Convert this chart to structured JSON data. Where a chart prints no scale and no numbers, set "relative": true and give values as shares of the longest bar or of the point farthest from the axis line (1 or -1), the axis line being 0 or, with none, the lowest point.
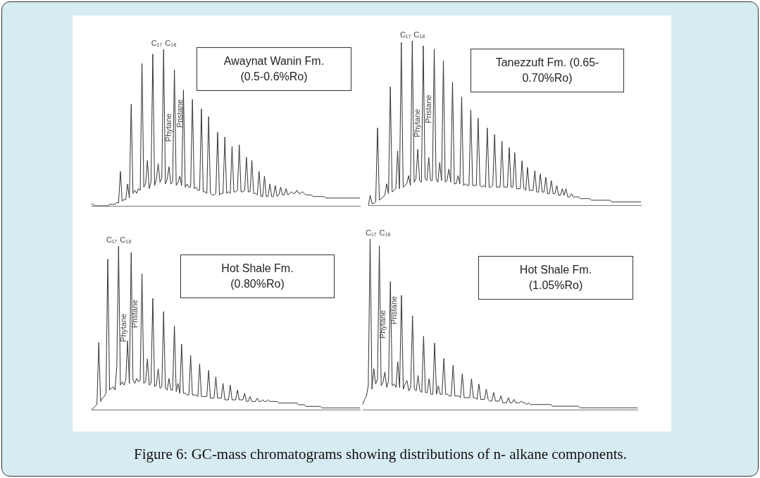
{
  "chart_data": [
    {
      "type": "line",
      "title": "Awaynat Wanin Fm. (0.5-0.6%Ro)",
      "relative": true,
      "annotations": [
        "C₁₇",
        "C₁₈",
        "Phytane",
        "Pristane"
      ],
      "categories": [
        null,
        null,
        null,
        null,
        null,
        null,
        null,
        null,
        null,
        null,
        null,
        null,
        null,
        null,
        null,
        null,
        null,
        null,
        null,
        null,
        null,
        null,
        null,
        null,
        null,
        null,
        null,
        null,
        null,
        null,
        null,
        null,
        null,
        null,
        null,
        null,
        null,
        null,
        null,
        null,
        null,
        null,
        null,
        null,
        null,
        null,
        null,
        null,
        null,
        null,
        null,
        null,
        null,
        null,
        null,
        null,
        null,
        null,
        null,
        null,
        null,
        null,
        null,
        null,
        null,
        null,
        null,
        null,
        null,
        null,
        null,
        null,
        null,
        null,
        null,
        null,
        null,
        null,
        null,
        null,
        null,
        null,
        null,
        null,
        null,
        null,
        null,
        null,
        null,
        null,
        null,
        null,
        null,
        null,
        null,
        null,
        null,
        null,
        null,
        null,
        null,
        null,
        null,
        null,
        null,
        null,
        null,
        null,
        null,
        null,
        null,
        null,
        null,
        null,
        null,
        null,
        null,
        null,
        null,
        null,
        null,
        null,
        null,
        null,
        null,
        null,
        null,
        null,
        null,
        null,
        null,
        null,
        null,
        null,
        null,
        null,
        null,
        null,
        null,
        null,
        null,
        null,
        null,
        null,
        null,
        null,
        null,
        null,
        null,
        null
      ],
      "series": [
        {
          "color": "#333333",
          "values": [
            0.01,
            0.01,
            0,
            0,
            0,
            0,
            0,
            0,
            0,
            0,
            0.01,
            0.01,
            0.01,
            0.01,
            0.02,
            0.02,
            0.22,
            0.03,
            0.04,
            0.04,
            0.14,
            0.05,
            0.65,
            0.08,
            0.1,
            0.08,
            0.11,
            0.1,
            0.91,
            0.12,
            0.14,
            0.29,
            0.11,
            0.15,
            0.97,
            0.13,
            0.17,
            0.27,
            0.15,
            0.18,
            1,
            0.14,
            0.17,
            0.25,
            0.14,
            0.15,
            0.87,
            0.13,
            0.15,
            0.19,
            0.13,
            0.74,
            0.12,
            0.14,
            0.12,
            0.12,
            0.68,
            0.11,
            0.12,
            0.1,
            0.1,
            0.62,
            0.09,
            0.09,
            0.08,
            0.57,
            0.08,
            0.07,
            0.07,
            0.08,
            0.47,
            0.07,
            0.08,
            0.08,
            0.44,
            0.08,
            0.09,
            0.08,
            0.38,
            0.09,
            0.09,
            0.1,
            0.39,
            0.09,
            0.09,
            0.1,
            0.31,
            0.09,
            0.09,
            0.29,
            0.08,
            0.08,
            0.07,
            0.22,
            0.06,
            0.06,
            0.19,
            0.06,
            0.06,
            0.14,
            0.06,
            0.06,
            0.13,
            0.06,
            0.07,
            0.12,
            0.07,
            0.07,
            0.11,
            0.07,
            0.08,
            0.09,
            0.08,
            0.08,
            0.1,
            0.08,
            0.08,
            0.09,
            0.08,
            0.07,
            0.07,
            0.07,
            0.07,
            0.06,
            0.06,
            0.06,
            0.06,
            0.06,
            0.06,
            0.06,
            0.05,
            0.05,
            0.05,
            0.05,
            0.05,
            0.05,
            0.05,
            0.05,
            0.05,
            0.05,
            0.05,
            0.05,
            0.05,
            0.05,
            0.05,
            0.05,
            0.05,
            0.05,
            0.05,
            0.05
          ]
        }
      ]
    },
    {
      "type": "line",
      "title": "Tanezzuft Fm. (0.65-0.70%Ro)",
      "relative": true,
      "annotations": [
        "C₁₇",
        "C₁₈",
        "Phytane",
        "Pristane"
      ],
      "categories": [
        null,
        null,
        null,
        null,
        null,
        null,
        null,
        null,
        null,
        null,
        null,
        null,
        null,
        null,
        null,
        null,
        null,
        null,
        null,
        null,
        null,
        null,
        null,
        null,
        null,
        null,
        null,
        null,
        null,
        null,
        null,
        null,
        null,
        null,
        null,
        null,
        null,
        null,
        null,
        null,
        null,
        null,
        null,
        null,
        null,
        null,
        null,
        null,
        null,
        null,
        null,
        null,
        null,
        null,
        null,
        null,
        null,
        null,
        null,
        null,
        null,
        null,
        null,
        null,
        null,
        null,
        null,
        null,
        null,
        null,
        null,
        null,
        null,
        null,
        null,
        null,
        null,
        null,
        null,
        null,
        null,
        null,
        null,
        null,
        null,
        null,
        null,
        null,
        null,
        null,
        null,
        null,
        null,
        null,
        null,
        null,
        null,
        null,
        null,
        null,
        null,
        null,
        null,
        null,
        null,
        null,
        null,
        null,
        null,
        null,
        null,
        null,
        null,
        null,
        null,
        null,
        null,
        null,
        null,
        null,
        null,
        null,
        null,
        null,
        null,
        null,
        null,
        null,
        null,
        null,
        null,
        null,
        null,
        null,
        null,
        null,
        null,
        null,
        null,
        null,
        null,
        null,
        null,
        null,
        null,
        null,
        null,
        null,
        null,
        null
      ],
      "series": [
        {
          "color": "#333333",
          "values": [
            0,
            0.06,
            0.01,
            0.01,
            0.02,
            0.47,
            0.03,
            0.04,
            0.05,
            0.06,
            0.13,
            0.07,
            0.72,
            0.08,
            0.09,
            0.1,
            0.33,
            0.1,
            0.99,
            0.11,
            0.12,
            0.13,
            0.18,
            0.12,
            1,
            0.14,
            0.16,
            0.34,
            0.15,
            0.14,
            0.97,
            0.16,
            0.15,
            0.29,
            0.15,
            0.15,
            0.95,
            0.16,
            0.14,
            0.26,
            0.15,
            0.88,
            0.14,
            0.15,
            0.22,
            0.14,
            0.75,
            0.13,
            0.13,
            0.18,
            0.13,
            0.66,
            0.12,
            0.13,
            0.12,
            0.12,
            0.58,
            0.12,
            0.12,
            0.12,
            0.53,
            0.12,
            0.11,
            0.12,
            0.11,
            0.47,
            0.11,
            0.11,
            0.12,
            0.43,
            0.11,
            0.11,
            0.11,
            0.39,
            0.11,
            0.11,
            0.11,
            0.35,
            0.11,
            0.11,
            0.32,
            0.1,
            0.1,
            0.1,
            0.27,
            0.1,
            0.09,
            0.23,
            0.09,
            0.09,
            0.09,
            0.21,
            0.08,
            0.08,
            0.19,
            0.08,
            0.08,
            0.17,
            0.07,
            0.07,
            0.15,
            0.07,
            0.07,
            0.12,
            0.06,
            0.06,
            0.1,
            0.06,
            0.1,
            0.05,
            0.05,
            0.07,
            0.05,
            0.05,
            0.05,
            0.05,
            0.04,
            0.04,
            0.04,
            0.04,
            0.04,
            0.04,
            0.03,
            0.03,
            0.03,
            0.03,
            0.03,
            0.03,
            0.03,
            0.03,
            0.03,
            0.03,
            0.03,
            0.02,
            0.02,
            0.02,
            0.02,
            0.02,
            0.02,
            0.02,
            0.02,
            0.02,
            0.02,
            0.02,
            0.02,
            0.02,
            0.02,
            0.02,
            0.02,
            0.02
          ]
        }
      ]
    },
    {
      "type": "line",
      "title": "Hot Shale Fm. (0.80%Ro)",
      "relative": true,
      "annotations": [
        "C₁₇",
        "C₁₈",
        "Phytane",
        "Pristane"
      ],
      "categories": [
        null,
        null,
        null,
        null,
        null,
        null,
        null,
        null,
        null,
        null,
        null,
        null,
        null,
        null,
        null,
        null,
        null,
        null,
        null,
        null,
        null,
        null,
        null,
        null,
        null,
        null,
        null,
        null,
        null,
        null,
        null,
        null,
        null,
        null,
        null,
        null,
        null,
        null,
        null,
        null,
        null,
        null,
        null,
        null,
        null,
        null,
        null,
        null,
        null,
        null,
        null,
        null,
        null,
        null,
        null,
        null,
        null,
        null,
        null,
        null,
        null,
        null,
        null,
        null,
        null,
        null,
        null,
        null,
        null,
        null,
        null,
        null,
        null,
        null,
        null,
        null,
        null,
        null,
        null,
        null,
        null,
        null,
        null,
        null,
        null,
        null,
        null,
        null,
        null,
        null,
        null,
        null,
        null,
        null,
        null,
        null,
        null,
        null,
        null,
        null,
        null,
        null,
        null,
        null,
        null,
        null,
        null,
        null,
        null,
        null,
        null,
        null,
        null,
        null,
        null,
        null,
        null,
        null,
        null,
        null,
        null,
        null,
        null,
        null,
        null,
        null,
        null,
        null,
        null,
        null,
        null,
        null,
        null,
        null,
        null,
        null,
        null,
        null,
        null,
        null,
        null,
        null,
        null,
        null,
        null,
        null,
        null,
        null,
        null,
        null
      ],
      "series": [
        {
          "color": "#333333",
          "values": [
            0,
            0.01,
            0.02,
            0.03,
            0.41,
            0.05,
            0.07,
            0.08,
            0.1,
            0.92,
            0.12,
            0.13,
            0.14,
            0.12,
            0.26,
            1,
            0.15,
            0.17,
            0.15,
            0.18,
            0.42,
            0.16,
            0.96,
            0.18,
            0.16,
            0.19,
            0.17,
            0.18,
            0.83,
            0.16,
            0.17,
            0.31,
            0.15,
            0.16,
            0.68,
            0.14,
            0.15,
            0.25,
            0.13,
            0.14,
            0.6,
            0.13,
            0.12,
            0.19,
            0.12,
            0.12,
            0.51,
            0.11,
            0.16,
            0.1,
            0.4,
            0.1,
            0.1,
            0.09,
            0.09,
            0.33,
            0.09,
            0.09,
            0.09,
            0.08,
            0.28,
            0.08,
            0.08,
            0.08,
            0.08,
            0.24,
            0.07,
            0.07,
            0.07,
            0.2,
            0.07,
            0.07,
            0.07,
            0.16,
            0.06,
            0.06,
            0.06,
            0.15,
            0.06,
            0.06,
            0.06,
            0.12,
            0.06,
            0.06,
            0.06,
            0.1,
            0.05,
            0.05,
            0.08,
            0.05,
            0.05,
            0.05,
            0.07,
            0.05,
            0.05,
            0.06,
            0.05,
            0.05,
            0.06,
            0.05,
            0.05,
            0.05,
            0.05,
            0.05,
            0.04,
            0.04,
            0.04,
            0.04,
            0.04,
            0.04,
            0.04,
            0.04,
            0.04,
            0.04,
            0.04,
            0.03,
            0.03,
            0.03,
            0.03,
            0.02,
            0.02,
            0.02,
            0.02,
            0.02,
            0.02,
            0.02,
            0.02,
            0.02,
            0.01,
            0.01,
            0.01,
            0.01,
            0.01,
            0.01,
            0.01,
            0.01,
            0.01,
            0.01,
            0.01,
            0.01,
            0.01,
            0.01,
            0.01,
            0.01,
            0.01,
            0.01,
            0.01,
            0.01,
            0.01,
            0.01
          ]
        }
      ]
    },
    {
      "type": "line",
      "title": "Hot Shale Fm. (1.05%Ro)",
      "relative": true,
      "annotations": [
        "C₁₇",
        "C₁₈",
        "Phytane",
        "Pristane"
      ],
      "categories": [
        null,
        null,
        null,
        null,
        null,
        null,
        null,
        null,
        null,
        null,
        null,
        null,
        null,
        null,
        null,
        null,
        null,
        null,
        null,
        null,
        null,
        null,
        null,
        null,
        null,
        null,
        null,
        null,
        null,
        null,
        null,
        null,
        null,
        null,
        null,
        null,
        null,
        null,
        null,
        null,
        null,
        null,
        null,
        null,
        null,
        null,
        null,
        null,
        null,
        null,
        null,
        null,
        null,
        null,
        null,
        null,
        null,
        null,
        null,
        null,
        null,
        null,
        null,
        null,
        null,
        null,
        null,
        null,
        null,
        null,
        null,
        null,
        null,
        null,
        null,
        null,
        null,
        null,
        null,
        null,
        null,
        null,
        null,
        null,
        null,
        null,
        null,
        null,
        null,
        null,
        null,
        null,
        null,
        null,
        null,
        null,
        null,
        null,
        null,
        null,
        null,
        null,
        null,
        null,
        null,
        null,
        null,
        null,
        null,
        null,
        null,
        null,
        null,
        null,
        null,
        null,
        null,
        null,
        null,
        null,
        null,
        null,
        null,
        null,
        null,
        null,
        null,
        null,
        null,
        null,
        null,
        null,
        null,
        null,
        null,
        null,
        null,
        null,
        null,
        null,
        null,
        null,
        null,
        null,
        null,
        null,
        null,
        null,
        null,
        null
      ],
      "series": [
        {
          "color": "#333333",
          "values": [
            0.03,
            0.06,
            0.08,
            0.14,
            1,
            0.12,
            0.24,
            0.15,
            0.18,
            0.96,
            0.14,
            0.16,
            0.22,
            0.13,
            0.17,
            0.75,
            0.14,
            0.15,
            0.13,
            0.28,
            0.13,
            0.67,
            0.12,
            0.15,
            0.17,
            0.11,
            0.13,
            0.55,
            0.12,
            0.11,
            0.2,
            0.11,
            0.1,
            0.43,
            0.1,
            0.1,
            0.18,
            0.09,
            0.09,
            0.39,
            0.09,
            0.14,
            0.09,
            0.09,
            0.3,
            0.09,
            0.09,
            0.08,
            0.08,
            0.26,
            0.08,
            0.08,
            0.08,
            0.07,
            0.21,
            0.07,
            0.07,
            0.07,
            0.07,
            0.18,
            0.07,
            0.07,
            0.06,
            0.15,
            0.06,
            0.06,
            0.06,
            0.12,
            0.06,
            0.05,
            0.05,
            0.1,
            0.05,
            0.05,
            0.05,
            0.08,
            0.04,
            0.04,
            0.04,
            0.07,
            0.04,
            0.04,
            0.06,
            0.04,
            0.04,
            0.04,
            0.05,
            0.04,
            0.04,
            0.03,
            0.04,
            0.03,
            0.03,
            0.03,
            0.03,
            0.03,
            0.03,
            0.03,
            0.03,
            0.03,
            0.03,
            0.03,
            0.03,
            0.02,
            0.02,
            0.02,
            0.02,
            0.02,
            0.02,
            0.02,
            0.02,
            0.02,
            0.02,
            0.02,
            0.02,
            0.02,
            0.02,
            0.02,
            0.01,
            0.01,
            0.01,
            0.01,
            0.01,
            0.01,
            0.01,
            0.01,
            0.01,
            0.01,
            0.01,
            0.01,
            0.01,
            0.01,
            0.01,
            0.01,
            0.01,
            0.01,
            0.01,
            0.01,
            0.01,
            0.01,
            0.01,
            0.01,
            0.01,
            0.01,
            0.01,
            0.01,
            0.01,
            0.01,
            0.01,
            0.01
          ]
        }
      ]
    },
    {
      "type": "other",
      "title": "Figure 6: GC-mass chromatograms showing distributions of n- alkane components."
    }
  ]
}
